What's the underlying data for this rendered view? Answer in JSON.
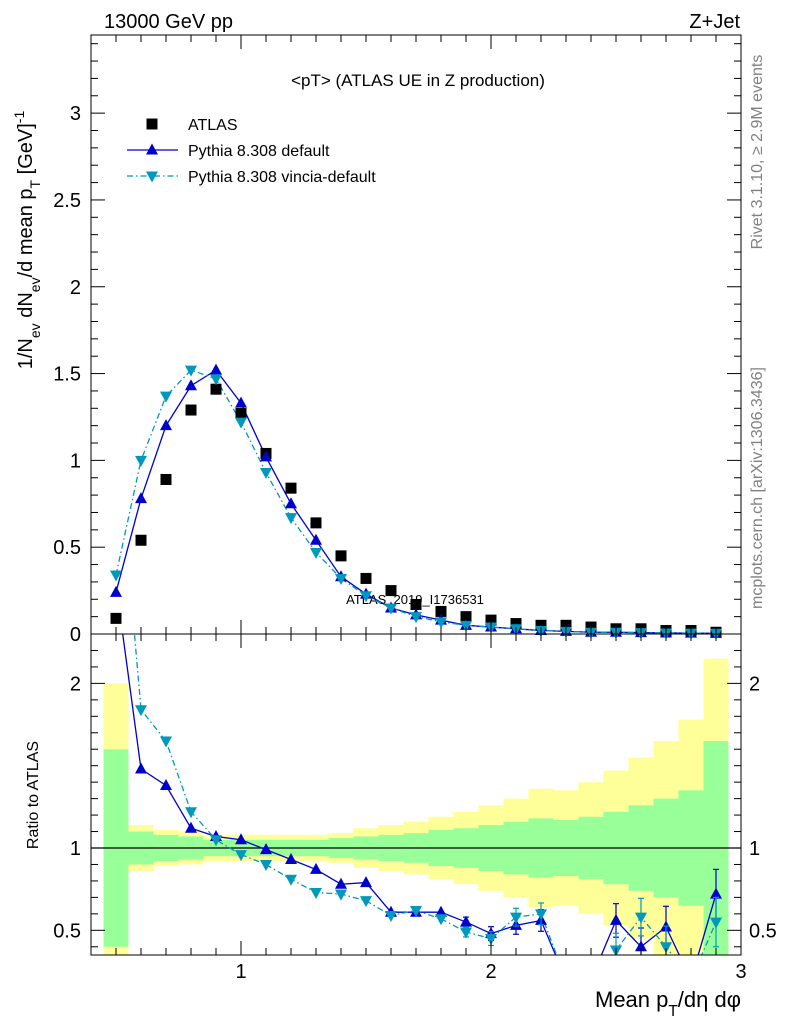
{
  "header": {
    "left": "13000 GeV pp",
    "right": "Z+Jet"
  },
  "side_texts": {
    "rivet": "Rivet 3.1.10, ≥ 2.9M events",
    "mcplots": "mcplots.cern.ch [arXiv:1306.3436]"
  },
  "colors": {
    "atlas": "#000000",
    "default": "#0000cc",
    "vincia": "#0099bb",
    "band_inner": "#99ff99",
    "band_outer": "#ffff99"
  },
  "chart_data": [
    {
      "type": "scatter",
      "title": "<pT> (ATLAS UE in Z production)",
      "watermark": "ATLAS_2019_I1736531",
      "ylabel": "1/N_ev dN_ev/d mean p_T [GeV]^-1",
      "xlim": [
        0.4,
        3.0
      ],
      "ylim": [
        0,
        3.45
      ],
      "yticks": [
        0,
        0.5,
        1,
        1.5,
        2,
        2.5,
        3
      ],
      "yticklabels": [
        "0",
        "0.5",
        "1",
        "1.5",
        "2",
        "2.5",
        "3"
      ],
      "legend": {
        "placement": "top-left",
        "entries": [
          {
            "name": "ATLAS",
            "marker": "square"
          },
          {
            "name": "Pythia 8.308 default",
            "marker": "triangle-up",
            "line": "solid"
          },
          {
            "name": "Pythia 8.308 vincia-default",
            "marker": "triangle-down",
            "line": "dash-dot"
          }
        ]
      },
      "x": [
        0.5,
        0.6,
        0.7,
        0.8,
        0.9,
        1.0,
        1.1,
        1.2,
        1.3,
        1.4,
        1.5,
        1.6,
        1.7,
        1.8,
        1.9,
        2.0,
        2.1,
        2.2,
        2.3,
        2.4,
        2.5,
        2.6,
        2.7,
        2.8,
        2.9
      ],
      "series": [
        {
          "name": "ATLAS",
          "values": [
            0.09,
            0.54,
            0.89,
            1.29,
            1.41,
            1.27,
            1.04,
            0.84,
            0.64,
            0.45,
            0.32,
            0.25,
            0.17,
            0.13,
            0.1,
            0.08,
            0.06,
            0.05,
            0.05,
            0.04,
            0.03,
            0.03,
            0.02,
            0.02,
            0.01
          ]
        },
        {
          "name": "Pythia 8.308 default",
          "values": [
            0.24,
            0.78,
            1.2,
            1.43,
            1.52,
            1.33,
            1.02,
            0.75,
            0.54,
            0.33,
            0.23,
            0.15,
            0.11,
            0.08,
            0.05,
            0.04,
            0.03,
            0.02,
            0.015,
            0.01,
            0.01,
            0.008,
            0.006,
            0.005,
            0.004
          ]
        },
        {
          "name": "Pythia 8.308 vincia-default",
          "values": [
            0.34,
            1.0,
            1.37,
            1.52,
            1.47,
            1.22,
            0.93,
            0.67,
            0.47,
            0.32,
            0.22,
            0.15,
            0.1,
            0.07,
            0.05,
            0.04,
            0.03,
            0.02,
            0.015,
            0.01,
            0.01,
            0.008,
            0.006,
            0.005,
            0.004
          ]
        }
      ]
    },
    {
      "type": "line",
      "ylabel": "Ratio to ATLAS",
      "xlabel": "Mean p_T/dη dφ",
      "xlim": [
        0.4,
        3.0
      ],
      "ylim": [
        0.35,
        2.3
      ],
      "xticks": [
        1,
        2,
        3
      ],
      "xticklabels": [
        "1",
        "2",
        "3"
      ],
      "yticks": [
        0.5,
        1,
        2
      ],
      "yticklabels": [
        "0.5",
        "1",
        "2"
      ],
      "bands": {
        "edges": [
          0.45,
          0.55,
          0.65,
          0.75,
          0.85,
          0.95,
          1.05,
          1.15,
          1.25,
          1.35,
          1.45,
          1.55,
          1.65,
          1.75,
          1.85,
          1.95,
          2.05,
          2.15,
          2.25,
          2.35,
          2.45,
          2.55,
          2.65,
          2.75,
          2.85,
          2.95
        ],
        "inner": [
          0.6,
          0.1,
          0.08,
          0.07,
          0.05,
          0.05,
          0.05,
          0.05,
          0.05,
          0.06,
          0.07,
          0.08,
          0.09,
          0.11,
          0.12,
          0.14,
          0.16,
          0.18,
          0.17,
          0.19,
          0.22,
          0.26,
          0.3,
          0.35,
          0.65
        ],
        "outer": [
          1.0,
          0.14,
          0.11,
          0.1,
          0.08,
          0.08,
          0.08,
          0.08,
          0.08,
          0.09,
          0.12,
          0.14,
          0.16,
          0.19,
          0.22,
          0.26,
          0.3,
          0.36,
          0.35,
          0.4,
          0.47,
          0.55,
          0.65,
          0.78,
          1.15
        ]
      },
      "series": [
        {
          "name": "Pythia 8.308 default",
          "values": [
            2.6,
            1.48,
            1.38,
            1.12,
            1.07,
            1.05,
            0.99,
            0.93,
            0.87,
            0.78,
            0.79,
            0.61,
            0.61,
            0.61,
            0.55,
            0.48,
            0.53,
            0.56,
            0.2,
            0.2,
            0.56,
            0.4,
            0.52,
            0.2,
            0.72
          ]
        },
        {
          "name": "Pythia 8.308 vincia-default",
          "values": [
            3.6,
            1.84,
            1.65,
            1.22,
            1.05,
            0.96,
            0.9,
            0.81,
            0.73,
            0.72,
            0.68,
            0.59,
            0.62,
            0.57,
            0.49,
            0.45,
            0.58,
            0.6,
            0.2,
            0.2,
            0.38,
            0.58,
            0.4,
            0.2,
            0.55
          ]
        }
      ]
    }
  ]
}
